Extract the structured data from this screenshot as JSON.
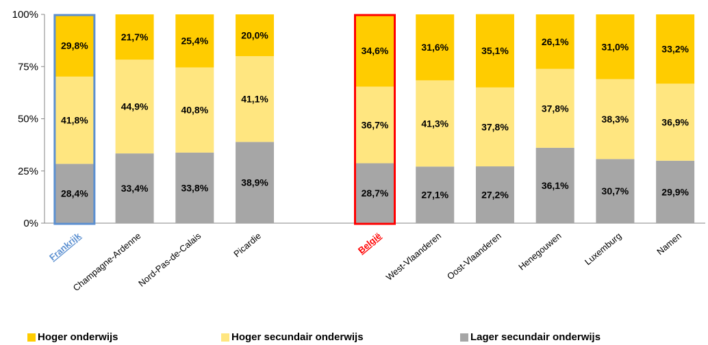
{
  "chart_data": {
    "type": "bar",
    "stacked": true,
    "percent_stacked": true,
    "categories": [
      "Frankrijk",
      "Champagne-Ardenne",
      "Nord-Pas-de-Calais",
      "Picardie",
      "",
      "België",
      "West-Vlaanderen",
      "Oost-Vlaanderen",
      "Henegouwen",
      "Luxemburg",
      "Namen"
    ],
    "highlighted": {
      "Frankrijk": {
        "color": "#5b8fd0",
        "label_style": "bold-underline"
      },
      "België": {
        "color": "#ff0000",
        "label_style": "bold-underline"
      }
    },
    "series": [
      {
        "name": "Lager secundair onderwijs",
        "color": "#a6a6a6",
        "values": [
          28.4,
          33.4,
          33.8,
          38.9,
          null,
          28.7,
          27.1,
          27.2,
          36.1,
          30.7,
          29.9
        ],
        "labels": [
          "28,4%",
          "33,4%",
          "33,8%",
          "38,9%",
          "",
          "28,7%",
          "27,1%",
          "27,2%",
          "36,1%",
          "30,7%",
          "29,9%"
        ]
      },
      {
        "name": "Hoger secundair onderwijs",
        "color": "#ffe680",
        "values": [
          41.8,
          44.9,
          40.8,
          41.1,
          null,
          36.7,
          41.3,
          37.8,
          37.8,
          38.3,
          36.9
        ],
        "labels": [
          "41,8%",
          "44,9%",
          "40,8%",
          "41,1%",
          "",
          "36,7%",
          "41,3%",
          "37,8%",
          "37,8%",
          "38,3%",
          "36,9%"
        ]
      },
      {
        "name": "Hoger onderwijs",
        "color": "#ffcc00",
        "values": [
          29.8,
          21.7,
          25.4,
          20.0,
          null,
          34.6,
          31.6,
          35.1,
          26.1,
          31.0,
          33.2
        ],
        "labels": [
          "29,8%",
          "21,7%",
          "25,4%",
          "20,0%",
          "",
          "34,6%",
          "31,6%",
          "35,1%",
          "26,1%",
          "31,0%",
          "33,2%"
        ]
      }
    ],
    "ylim": [
      0,
      100
    ],
    "yticks": [
      "0%",
      "25%",
      "50%",
      "75%",
      "100%"
    ],
    "legend": {
      "position": "bottom",
      "order": [
        "Hoger onderwijs",
        "Hoger secundair onderwijs",
        "Lager secundair onderwijs"
      ]
    }
  }
}
